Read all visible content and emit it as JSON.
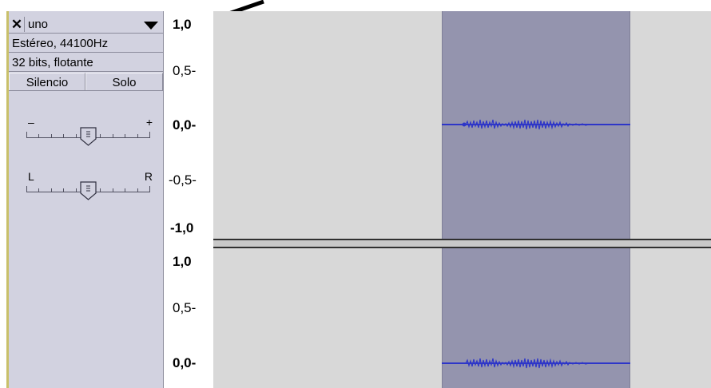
{
  "track": {
    "close_label": "✕",
    "name": "uno",
    "format": "Estéreo, 44100Hz",
    "bit_depth": "32 bits, flotante",
    "mute_label": "Silencio",
    "solo_label": "Solo"
  },
  "gain_slider": {
    "min_label": "–",
    "max_label": "+",
    "level": 0.5
  },
  "pan_slider": {
    "left_label": "L",
    "right_label": "R",
    "level": 0.5
  },
  "channel_top": {
    "ruler_labels": [
      "1,0",
      "0,5-",
      "0,0-",
      "-0,5-",
      "-1,0"
    ]
  },
  "channel_bottom": {
    "ruler_labels": [
      "1,0",
      "0,5-",
      "0,0-"
    ]
  },
  "colors": {
    "panel_bg": "#d2d2e0",
    "clip_bg": "#d8d8d8",
    "selection_bg": "#9494ae",
    "waveform": "#2e36c8",
    "arrow": "#000000"
  }
}
